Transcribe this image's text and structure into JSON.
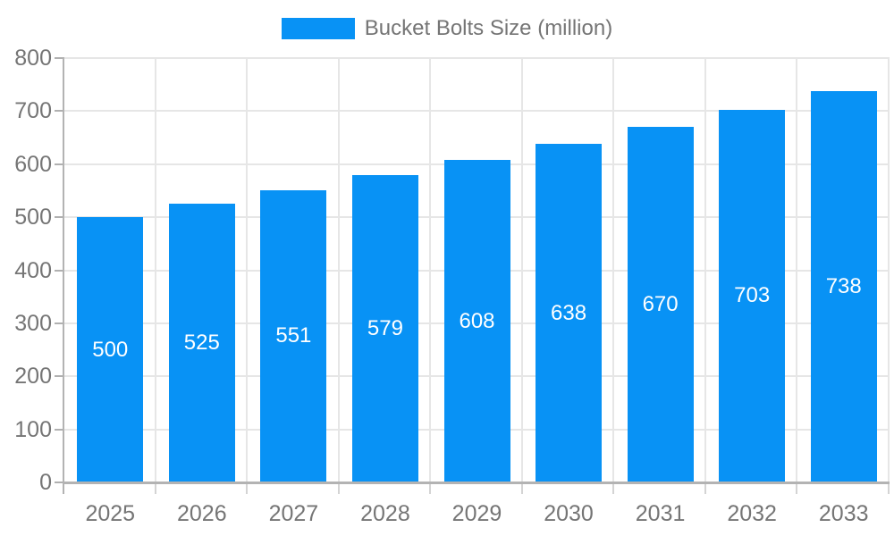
{
  "legend": {
    "label": "Bucket Bolts Size (million)"
  },
  "chart_data": {
    "type": "bar",
    "title": "",
    "series_name": "Bucket Bolts Size (million)",
    "categories": [
      "2025",
      "2026",
      "2027",
      "2028",
      "2029",
      "2030",
      "2031",
      "2032",
      "2033"
    ],
    "values": [
      500,
      525,
      551,
      579,
      608,
      638,
      670,
      703,
      738
    ],
    "bar_label_values": [
      "500",
      "525",
      "551",
      "579",
      "608",
      "638",
      "670",
      "703",
      "738"
    ],
    "xlabel": "",
    "ylabel": "",
    "ylim": [
      0,
      800
    ],
    "yticks": [
      0,
      100,
      200,
      300,
      400,
      500,
      600,
      700,
      800
    ],
    "grid": true,
    "legend_position": "top-center",
    "bar_label_position": "inside-center",
    "colors": {
      "bar": "#0892F5",
      "bar_label": "#FFFFFF",
      "axis_text": "#757575",
      "legend_text": "#757575",
      "gridline": "#E6E6E6",
      "axis_line": "#B3B3B3",
      "x_tick": "#D4D4D4",
      "y_tick": "#B0B0B0",
      "background": "#FFFFFF"
    }
  }
}
